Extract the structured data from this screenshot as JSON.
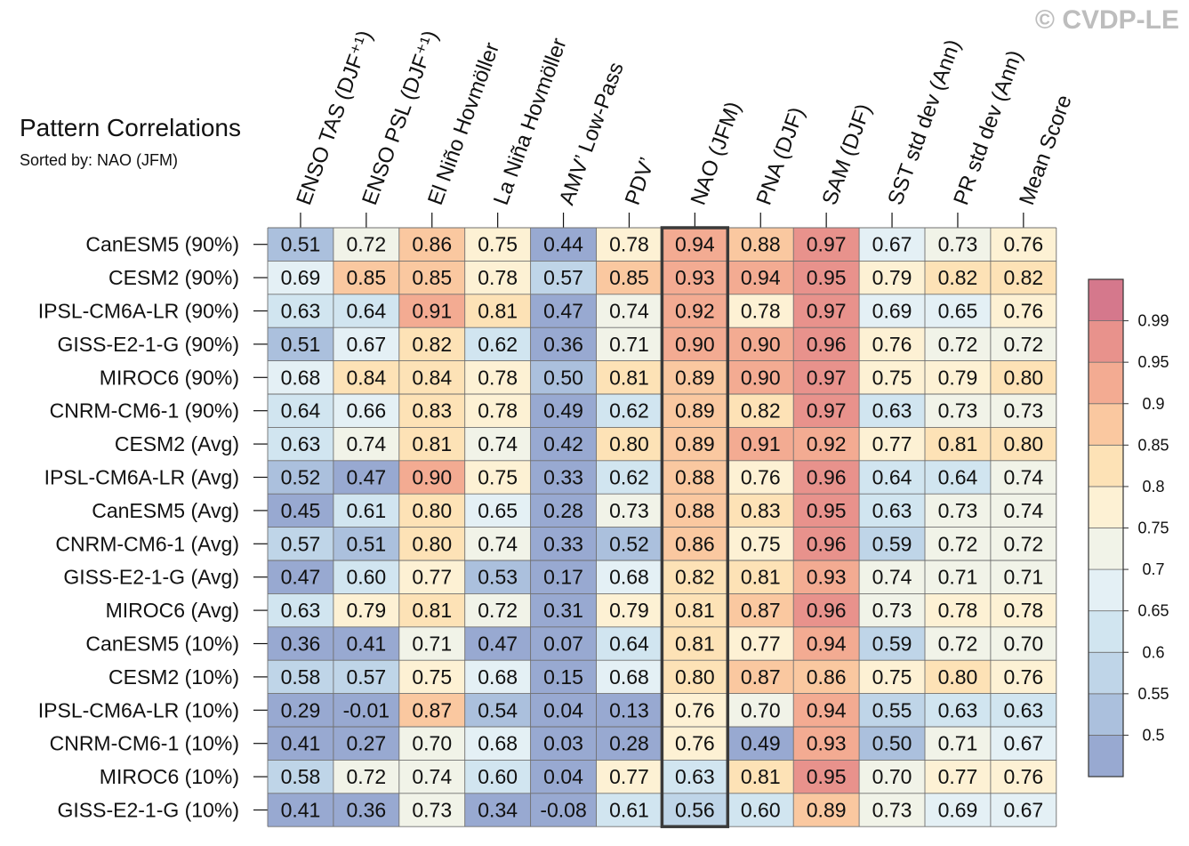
{
  "watermark": "© CVDP-LE",
  "chart_data": {
    "type": "heatmap",
    "title": "Pattern Correlations",
    "subtitle": "Sorted by: NAO (JFM)",
    "highlight_column": "NAO (JFM)",
    "columns": [
      "ENSO TAS (DJF⁺¹)",
      "ENSO PSL (DJF⁺¹)",
      "El Niño Hovmöller",
      "La Niña Hovmöller",
      "AMV’ Low-Pass",
      "PDV’",
      "NAO (JFM)",
      "PNA (DJF)",
      "SAM (DJF)",
      "SST std dev (Ann)",
      "PR std dev (Ann)",
      "Mean Score"
    ],
    "rows": [
      "CanESM5 (90%)",
      "CESM2 (90%)",
      "IPSL-CM6A-LR (90%)",
      "GISS-E2-1-G (90%)",
      "MIROC6 (90%)",
      "CNRM-CM6-1 (90%)",
      "CESM2 (Avg)",
      "IPSL-CM6A-LR (Avg)",
      "CanESM5 (Avg)",
      "CNRM-CM6-1 (Avg)",
      "GISS-E2-1-G (Avg)",
      "MIROC6 (Avg)",
      "CanESM5 (10%)",
      "CESM2 (10%)",
      "IPSL-CM6A-LR (10%)",
      "CNRM-CM6-1 (10%)",
      "MIROC6 (10%)",
      "GISS-E2-1-G (10%)"
    ],
    "values": [
      [
        "0.51",
        "0.72",
        "0.86",
        "0.75",
        "0.44",
        "0.78",
        "0.94",
        "0.88",
        "0.97",
        "0.67",
        "0.73",
        "0.76"
      ],
      [
        "0.69",
        "0.85",
        "0.85",
        "0.78",
        "0.57",
        "0.85",
        "0.93",
        "0.94",
        "0.95",
        "0.79",
        "0.82",
        "0.82"
      ],
      [
        "0.63",
        "0.64",
        "0.91",
        "0.81",
        "0.47",
        "0.74",
        "0.92",
        "0.78",
        "0.97",
        "0.69",
        "0.65",
        "0.76"
      ],
      [
        "0.51",
        "0.67",
        "0.82",
        "0.62",
        "0.36",
        "0.71",
        "0.90",
        "0.90",
        "0.96",
        "0.76",
        "0.72",
        "0.72"
      ],
      [
        "0.68",
        "0.84",
        "0.84",
        "0.78",
        "0.50",
        "0.81",
        "0.89",
        "0.90",
        "0.97",
        "0.75",
        "0.79",
        "0.80"
      ],
      [
        "0.64",
        "0.66",
        "0.83",
        "0.78",
        "0.49",
        "0.62",
        "0.89",
        "0.82",
        "0.97",
        "0.63",
        "0.73",
        "0.73"
      ],
      [
        "0.63",
        "0.74",
        "0.81",
        "0.74",
        "0.42",
        "0.80",
        "0.89",
        "0.91",
        "0.92",
        "0.77",
        "0.81",
        "0.80"
      ],
      [
        "0.52",
        "0.47",
        "0.90",
        "0.75",
        "0.33",
        "0.62",
        "0.88",
        "0.76",
        "0.96",
        "0.64",
        "0.64",
        "0.74"
      ],
      [
        "0.45",
        "0.61",
        "0.80",
        "0.65",
        "0.28",
        "0.73",
        "0.88",
        "0.83",
        "0.95",
        "0.63",
        "0.73",
        "0.74"
      ],
      [
        "0.57",
        "0.51",
        "0.80",
        "0.74",
        "0.33",
        "0.52",
        "0.86",
        "0.75",
        "0.96",
        "0.59",
        "0.72",
        "0.72"
      ],
      [
        "0.47",
        "0.60",
        "0.77",
        "0.53",
        "0.17",
        "0.68",
        "0.82",
        "0.81",
        "0.93",
        "0.74",
        "0.71",
        "0.71"
      ],
      [
        "0.63",
        "0.79",
        "0.81",
        "0.72",
        "0.31",
        "0.79",
        "0.81",
        "0.87",
        "0.96",
        "0.73",
        "0.78",
        "0.78"
      ],
      [
        "0.36",
        "0.41",
        "0.71",
        "0.47",
        "0.07",
        "0.64",
        "0.81",
        "0.77",
        "0.94",
        "0.59",
        "0.72",
        "0.70"
      ],
      [
        "0.58",
        "0.57",
        "0.75",
        "0.68",
        "0.15",
        "0.68",
        "0.80",
        "0.87",
        "0.86",
        "0.75",
        "0.80",
        "0.76"
      ],
      [
        "0.29",
        "-0.01",
        "0.87",
        "0.54",
        "0.04",
        "0.13",
        "0.76",
        "0.70",
        "0.94",
        "0.55",
        "0.63",
        "0.63"
      ],
      [
        "0.41",
        "0.27",
        "0.70",
        "0.68",
        "0.03",
        "0.28",
        "0.76",
        "0.49",
        "0.93",
        "0.50",
        "0.71",
        "0.67"
      ],
      [
        "0.58",
        "0.72",
        "0.74",
        "0.60",
        "0.04",
        "0.77",
        "0.63",
        "0.81",
        "0.95",
        "0.70",
        "0.77",
        "0.76"
      ],
      [
        "0.41",
        "0.36",
        "0.73",
        "0.34",
        "-0.08",
        "0.61",
        "0.56",
        "0.60",
        "0.89",
        "0.73",
        "0.69",
        "0.67"
      ]
    ],
    "colorbar": {
      "ticks": [
        "0.5",
        "0.55",
        "0.6",
        "0.65",
        "0.7",
        "0.75",
        "0.8",
        "0.85",
        "0.9",
        "0.95",
        "0.99"
      ],
      "colors": [
        "#98a9d1",
        "#abc0dd",
        "#bfd5e8",
        "#d1e5f0",
        "#e4f0f5",
        "#f1f3e8",
        "#fdf1d4",
        "#fde2b6",
        "#fac8a0",
        "#f3ab92",
        "#e8928c",
        "#d5788c"
      ]
    }
  }
}
